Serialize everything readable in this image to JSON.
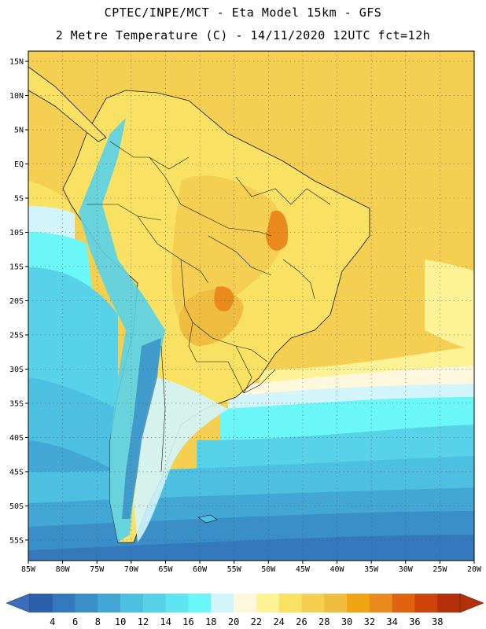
{
  "header": {
    "title_line1": "CPTEC/INPE/MCT - Eta Model 15km - GFS",
    "title_line2": "2 Metre Temperature (C) - 14/11/2020 12UTC fct=12h"
  },
  "map": {
    "lat_labels": [
      "15N",
      "10N",
      "5N",
      "EQ",
      "5S",
      "10S",
      "15S",
      "20S",
      "25S",
      "30S",
      "35S",
      "40S",
      "45S",
      "50S",
      "55S"
    ],
    "lon_labels": [
      "85W",
      "80W",
      "75W",
      "70W",
      "65W",
      "60W",
      "55W",
      "50W",
      "45W",
      "40W",
      "35W",
      "30W",
      "25W",
      "20W"
    ],
    "lat_range": [
      -58,
      16.5
    ],
    "lon_range": [
      -85,
      -20
    ]
  },
  "colorbar": {
    "labels": [
      "4",
      "6",
      "8",
      "10",
      "12",
      "14",
      "16",
      "18",
      "20",
      "22",
      "24",
      "26",
      "28",
      "30",
      "32",
      "34",
      "36",
      "38"
    ],
    "colors": [
      "#2b5faa",
      "#3478bd",
      "#3a8fc9",
      "#42a7d5",
      "#4dbfe0",
      "#58d2e8",
      "#5ee5ef",
      "#6bf7f7",
      "#d2f4fb",
      "#fdf7de",
      "#fdf396",
      "#f9e263",
      "#f4cf52",
      "#efbd3f",
      "#f0a411",
      "#ea8a1c",
      "#e06410",
      "#cc4409",
      "#b4300a"
    ],
    "underflow_color": "#3a6dbd",
    "overflow_color": "#b4300a"
  }
}
